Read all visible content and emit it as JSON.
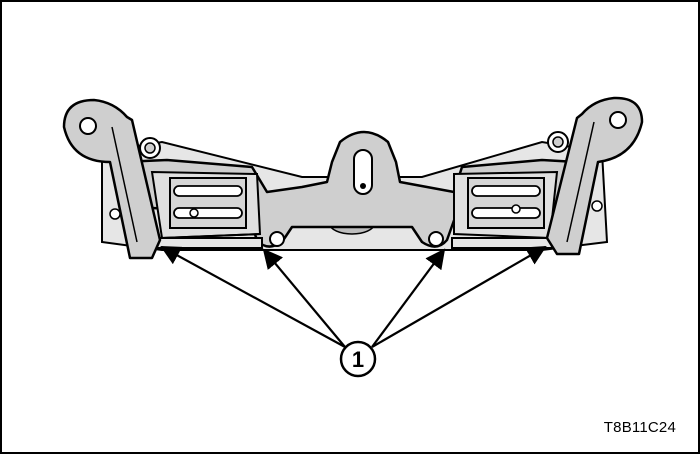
{
  "figure": {
    "callout": "1",
    "code": "T8B11C24"
  },
  "colors": {
    "line": "#000000",
    "body_fill": "#cfcfcf",
    "light_fill": "#ffffff",
    "background": "#ffffff"
  }
}
